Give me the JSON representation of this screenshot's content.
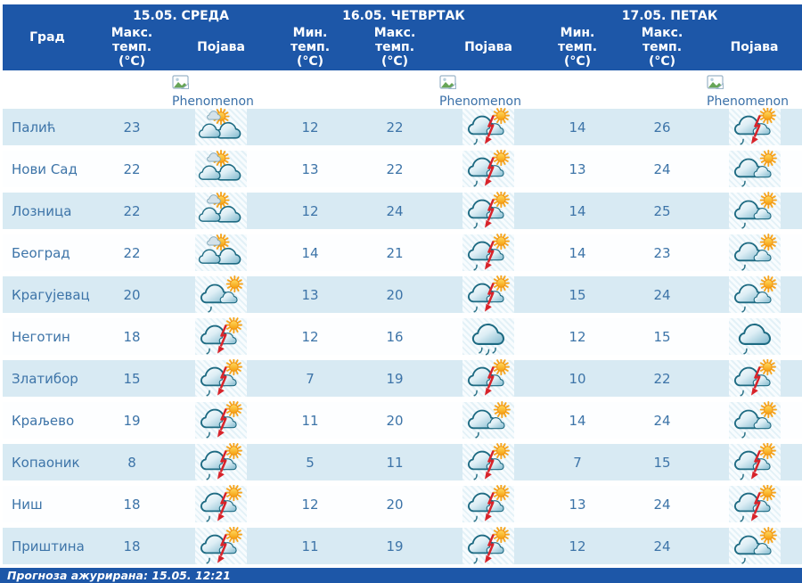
{
  "table": {
    "col_headers": {
      "city": "Град",
      "max": [
        "Макс.",
        "темп.",
        "(°C)"
      ],
      "min": [
        "Мин.",
        "темп.",
        "(°C)"
      ],
      "phenomenon": "Појава"
    },
    "day_headers": [
      {
        "label": "15.05. СРЕДА"
      },
      {
        "label": "16.05. ЧЕТВРТАК"
      },
      {
        "label": "17.05. ПЕТАК"
      }
    ],
    "phenomenon_alt": "Phenomenon",
    "rows": [
      {
        "city": "Палић",
        "d1": {
          "max": 23,
          "icon": "partly_sunny"
        },
        "d2": {
          "min": 12,
          "max": 22,
          "icon": "sun_storm"
        },
        "d3": {
          "min": 14,
          "max": 26,
          "icon": "sun_storm"
        }
      },
      {
        "city": "Нови Сад",
        "d1": {
          "max": 22,
          "icon": "partly_sunny"
        },
        "d2": {
          "min": 13,
          "max": 22,
          "icon": "sun_storm"
        },
        "d3": {
          "min": 13,
          "max": 24,
          "icon": "sun_rain"
        }
      },
      {
        "city": "Лозница",
        "d1": {
          "max": 22,
          "icon": "partly_sunny"
        },
        "d2": {
          "min": 12,
          "max": 24,
          "icon": "sun_storm"
        },
        "d3": {
          "min": 14,
          "max": 25,
          "icon": "sun_rain"
        }
      },
      {
        "city": "Београд",
        "d1": {
          "max": 22,
          "icon": "partly_sunny"
        },
        "d2": {
          "min": 14,
          "max": 21,
          "icon": "sun_storm"
        },
        "d3": {
          "min": 14,
          "max": 23,
          "icon": "sun_rain"
        }
      },
      {
        "city": "Крагујевац",
        "d1": {
          "max": 20,
          "icon": "sun_rain"
        },
        "d2": {
          "min": 13,
          "max": 20,
          "icon": "sun_storm"
        },
        "d3": {
          "min": 15,
          "max": 24,
          "icon": "sun_rain"
        }
      },
      {
        "city": "Неготин",
        "d1": {
          "max": 18,
          "icon": "sun_storm"
        },
        "d2": {
          "min": 12,
          "max": 16,
          "icon": "cloud_rain"
        },
        "d3": {
          "min": 12,
          "max": 15,
          "icon": "cloud_rain_light"
        }
      },
      {
        "city": "Златибор",
        "d1": {
          "max": 15,
          "icon": "sun_storm"
        },
        "d2": {
          "min": 7,
          "max": 19,
          "icon": "sun_storm"
        },
        "d3": {
          "min": 10,
          "max": 22,
          "icon": "sun_storm"
        }
      },
      {
        "city": "Краљево",
        "d1": {
          "max": 19,
          "icon": "sun_storm"
        },
        "d2": {
          "min": 11,
          "max": 20,
          "icon": "sun_rain"
        },
        "d3": {
          "min": 14,
          "max": 24,
          "icon": "sun_rain"
        }
      },
      {
        "city": "Копаоник",
        "d1": {
          "max": 8,
          "icon": "sun_storm"
        },
        "d2": {
          "min": 5,
          "max": 11,
          "icon": "sun_storm"
        },
        "d3": {
          "min": 7,
          "max": 15,
          "icon": "sun_storm"
        }
      },
      {
        "city": "Ниш",
        "d1": {
          "max": 18,
          "icon": "sun_storm"
        },
        "d2": {
          "min": 12,
          "max": 20,
          "icon": "sun_storm"
        },
        "d3": {
          "min": 13,
          "max": 24,
          "icon": "sun_storm"
        }
      },
      {
        "city": "Приштина",
        "d1": {
          "max": 18,
          "icon": "sun_storm"
        },
        "d2": {
          "min": 11,
          "max": 19,
          "icon": "sun_storm"
        },
        "d3": {
          "min": 12,
          "max": 24,
          "icon": "sun_rain"
        }
      }
    ],
    "footer": "Прогноза ажурирана:  15.05. 12:21"
  },
  "colors": {
    "header_blue": "#1d57a8",
    "row_stripe_blue": "#d8eaf3",
    "text_blue": "#3d74a8",
    "sun_orange": "#f7a51d",
    "lightning_red": "#d8232a",
    "cloud_outline": "#1d6a82"
  }
}
